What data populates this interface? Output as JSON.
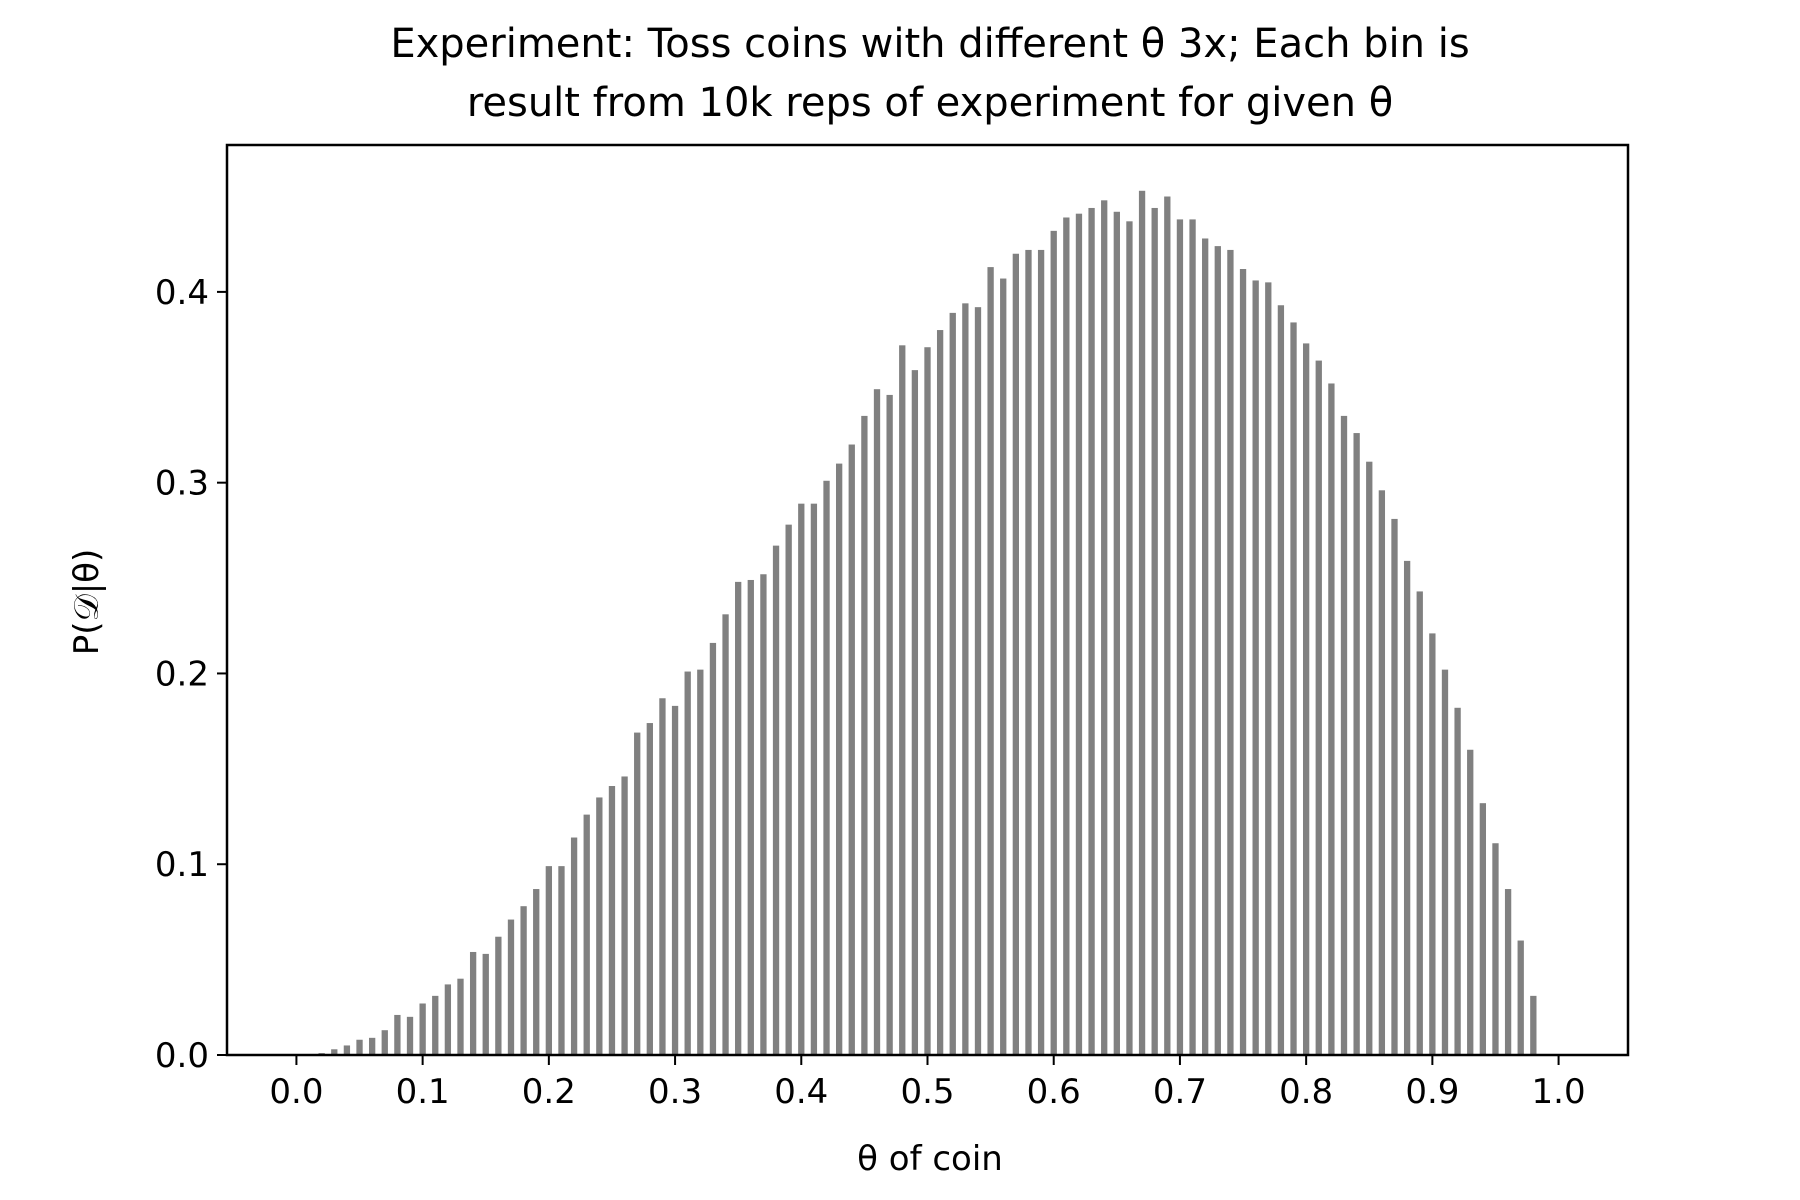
{
  "chart_data": {
    "type": "bar",
    "title_lines": [
      "Experiment: Toss coins with different θ 3x; Each bin is",
      "result from 10k reps of experiment for given θ"
    ],
    "xlabel": "θ of coin",
    "ylabel": "P(𝒟|θ)",
    "xlim": [
      -0.055,
      1.055
    ],
    "ylim": [
      0,
      0.477
    ],
    "bar_width": 0.005,
    "bar_color": "#808080",
    "grid": false,
    "legend": "none",
    "x_ticks": [
      {
        "value": 0.0,
        "label": "0.0"
      },
      {
        "value": 0.1,
        "label": "0.1"
      },
      {
        "value": 0.2,
        "label": "0.2"
      },
      {
        "value": 0.3,
        "label": "0.3"
      },
      {
        "value": 0.4,
        "label": "0.4"
      },
      {
        "value": 0.5,
        "label": "0.5"
      },
      {
        "value": 0.6,
        "label": "0.6"
      },
      {
        "value": 0.7,
        "label": "0.7"
      },
      {
        "value": 0.8,
        "label": "0.8"
      },
      {
        "value": 0.9,
        "label": "0.9"
      },
      {
        "value": 1.0,
        "label": "1.0"
      }
    ],
    "y_ticks": [
      {
        "value": 0.0,
        "label": "0.0"
      },
      {
        "value": 0.1,
        "label": "0.1"
      },
      {
        "value": 0.2,
        "label": "0.2"
      },
      {
        "value": 0.3,
        "label": "0.3"
      },
      {
        "value": 0.4,
        "label": "0.4"
      }
    ],
    "x": [
      0.0,
      0.01,
      0.02,
      0.03,
      0.04,
      0.05,
      0.06,
      0.07,
      0.08,
      0.09,
      0.1,
      0.11,
      0.12,
      0.13,
      0.14,
      0.15,
      0.16,
      0.17,
      0.18,
      0.19,
      0.2,
      0.21,
      0.22,
      0.23,
      0.24,
      0.25,
      0.26,
      0.27,
      0.28,
      0.29,
      0.3,
      0.31,
      0.32,
      0.33,
      0.34,
      0.35,
      0.36,
      0.37,
      0.38,
      0.39,
      0.4,
      0.41,
      0.42,
      0.43,
      0.44,
      0.45,
      0.46,
      0.47,
      0.48,
      0.49,
      0.5,
      0.51,
      0.52,
      0.53,
      0.54,
      0.55,
      0.56,
      0.57,
      0.58,
      0.59,
      0.6,
      0.61,
      0.62,
      0.63,
      0.64,
      0.65,
      0.66,
      0.67,
      0.68,
      0.69,
      0.7,
      0.71,
      0.72,
      0.73,
      0.74,
      0.75,
      0.76,
      0.77,
      0.78,
      0.79,
      0.8,
      0.81,
      0.82,
      0.83,
      0.84,
      0.85,
      0.86,
      0.87,
      0.88,
      0.89,
      0.9,
      0.91,
      0.92,
      0.93,
      0.94,
      0.95,
      0.96,
      0.97,
      0.98,
      0.99
    ],
    "values": [
      0.0,
      0.0,
      0.001,
      0.003,
      0.005,
      0.008,
      0.009,
      0.013,
      0.021,
      0.02,
      0.027,
      0.031,
      0.037,
      0.04,
      0.054,
      0.053,
      0.062,
      0.071,
      0.078,
      0.087,
      0.099,
      0.099,
      0.114,
      0.126,
      0.135,
      0.141,
      0.146,
      0.169,
      0.174,
      0.187,
      0.183,
      0.201,
      0.202,
      0.216,
      0.231,
      0.248,
      0.249,
      0.252,
      0.267,
      0.278,
      0.289,
      0.289,
      0.301,
      0.31,
      0.32,
      0.335,
      0.349,
      0.346,
      0.372,
      0.359,
      0.371,
      0.38,
      0.389,
      0.394,
      0.392,
      0.413,
      0.407,
      0.42,
      0.422,
      0.422,
      0.432,
      0.439,
      0.441,
      0.444,
      0.448,
      0.442,
      0.437,
      0.453,
      0.444,
      0.45,
      0.438,
      0.438,
      0.428,
      0.424,
      0.422,
      0.412,
      0.406,
      0.405,
      0.393,
      0.384,
      0.373,
      0.364,
      0.352,
      0.335,
      0.326,
      0.311,
      0.296,
      0.281,
      0.259,
      0.243,
      0.221,
      0.202,
      0.182,
      0.16,
      0.132,
      0.111,
      0.087,
      0.06,
      0.031,
      0.0
    ]
  }
}
